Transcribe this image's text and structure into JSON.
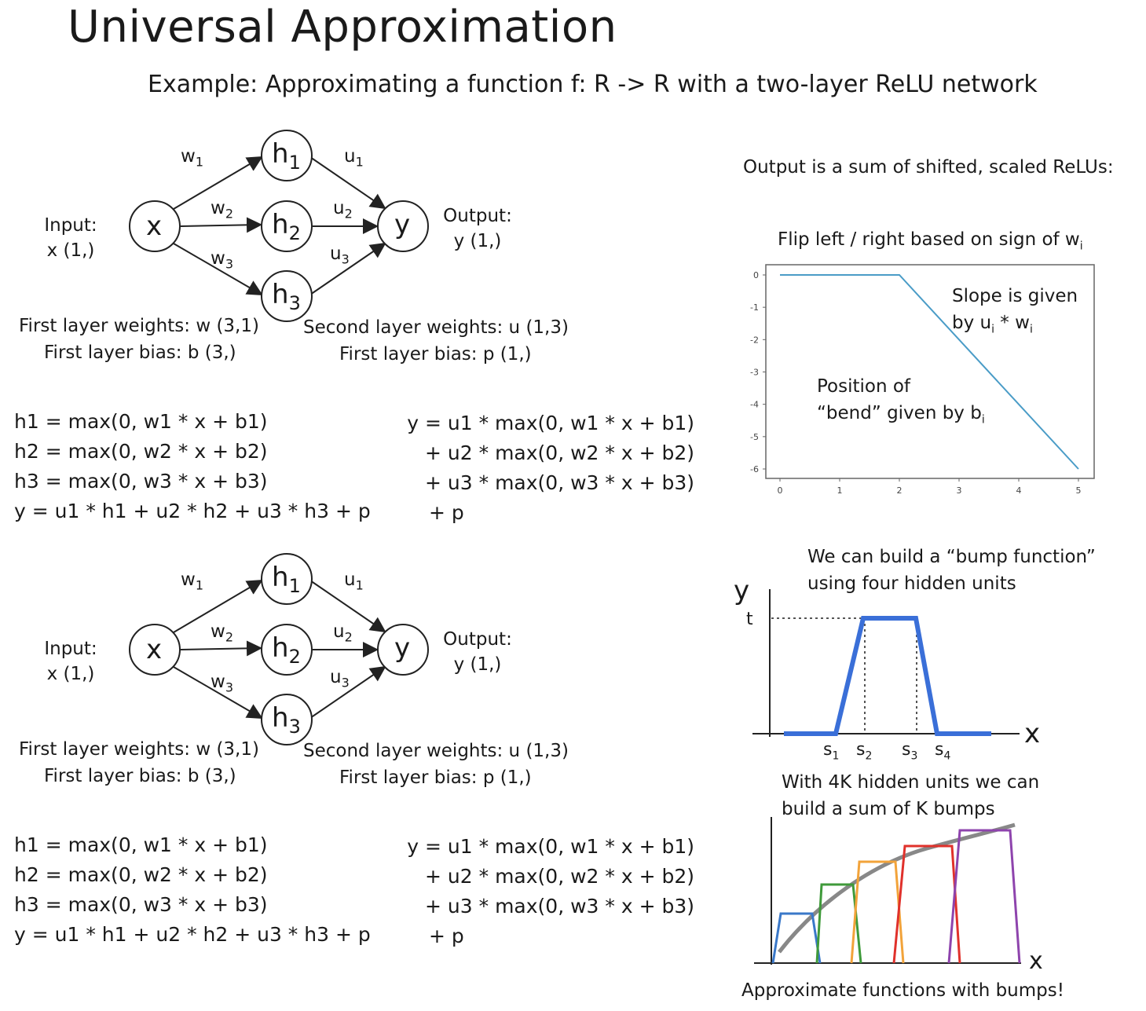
{
  "slide": {
    "title": "Universal Approximation",
    "subtitle": "Example: Approximating a function f: R -> R with a two-layer ReLU network"
  },
  "network": {
    "input_label_1": "Input:",
    "input_label_2": "x (1,)",
    "output_label_1": "Output:",
    "output_label_2": "y (1,)",
    "nodes": {
      "x": "x",
      "h1": "h",
      "h1_sub": "1",
      "h2": "h",
      "h2_sub": "2",
      "h3": "h",
      "h3_sub": "3",
      "y": "y"
    },
    "edges": {
      "w1": "w",
      "w1_sub": "1",
      "w2": "w",
      "w2_sub": "2",
      "w3": "w",
      "w3_sub": "3",
      "u1": "u",
      "u1_sub": "1",
      "u2": "u",
      "u2_sub": "2",
      "u3": "u",
      "u3_sub": "3"
    },
    "first_weights": "First layer weights: w (3,1)",
    "first_bias": "First layer bias: b (3,)",
    "second_weights": "Second layer weights: u (1,3)",
    "second_bias": "First layer bias: p (1,)"
  },
  "equations": {
    "left": [
      "h1 = max(0, w1 * x + b1)",
      "h2 = max(0, w2 * x + b2)",
      "h3 = max(0, w3 * x + b3)",
      "y = u1 * h1 + u2 * h2 + u3 * h3 + p"
    ],
    "right": [
      "y = u1 * max(0, w1 * x + b1)",
      "+ u2 * max(0, w2 * x + b2)",
      "+ u3 * max(0, w3 * x + b3)",
      "+ p"
    ]
  },
  "relu_panel": {
    "heading": "Output is a sum of shifted, scaled ReLUs:",
    "plot_title": "Flip left / right based on sign of w",
    "plot_title_sub": "i",
    "slope_note_1": "Slope is given",
    "slope_note_2": "by u",
    "slope_note_2_sub": "i",
    "slope_note_2_mid": " * w",
    "slope_note_2_sub2": "i",
    "bend_note_1": "Position of",
    "bend_note_2": "“bend” given by b",
    "bend_note_2_sub": "i"
  },
  "chart_data": {
    "type": "line",
    "x": [
      0,
      2,
      5
    ],
    "y": [
      0,
      0,
      -6
    ],
    "xlim": [
      0,
      5
    ],
    "ylim": [
      -6,
      0
    ],
    "x_ticks": [
      "0",
      "1",
      "2",
      "3",
      "4",
      "5"
    ],
    "y_ticks": [
      "0",
      "-1",
      "-2",
      "-3",
      "-4",
      "-5",
      "-6"
    ],
    "line_color": "#4a9cc7"
  },
  "bump_panel": {
    "heading_1": "We can build a “bump function”",
    "heading_2": "using four hidden units",
    "y_axis": "y",
    "x_axis": "x",
    "t_label": "t",
    "s_labels": [
      "s",
      "s",
      "s",
      "s"
    ],
    "s_subs": [
      "1",
      "2",
      "3",
      "4"
    ],
    "bump_color": "#3a6fd8"
  },
  "sum_panel": {
    "heading_1": "With 4K hidden units we can",
    "heading_2": "build a sum of K bumps",
    "x_axis": "x",
    "caption": "Approximate functions with bumps!",
    "bump_colors": [
      "#3a78c9",
      "#3f9a3a",
      "#f2a33a",
      "#e0312b",
      "#8e44ad"
    ],
    "curve_color": "#888888"
  }
}
